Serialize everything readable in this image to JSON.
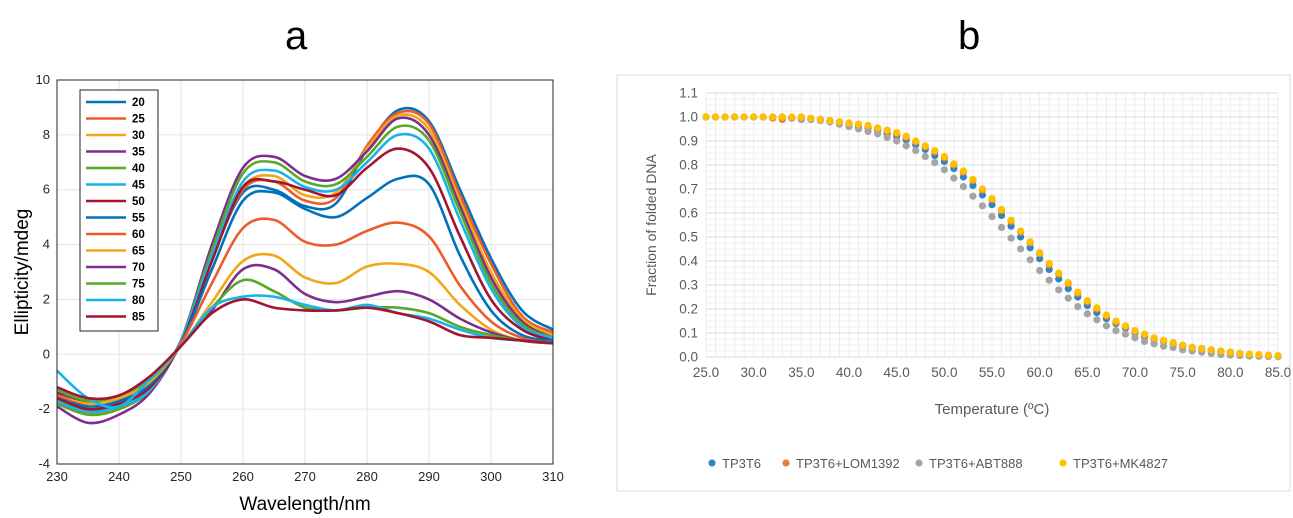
{
  "panel_a_letter": "a",
  "panel_b_letter": "b",
  "chart_data": [
    {
      "type": "line",
      "panel": "a",
      "xlabel": "Wavelength/nm",
      "ylabel": "Ellipticity/mdeg",
      "xlim": [
        230,
        310
      ],
      "ylim": [
        -4,
        10
      ],
      "xticks": [
        230,
        240,
        250,
        260,
        270,
        280,
        290,
        300,
        310
      ],
      "yticks": [
        -4,
        -2,
        0,
        2,
        4,
        6,
        8,
        10
      ],
      "grid": true,
      "legend_position": "top-left",
      "x": [
        230,
        235,
        240,
        245,
        250,
        255,
        260,
        265,
        270,
        275,
        280,
        285,
        290,
        295,
        300,
        305,
        310
      ],
      "series": [
        {
          "name": "20",
          "color": "#0072BD",
          "values": [
            -1.5,
            -2.0,
            -1.8,
            -1.2,
            0.5,
            3.5,
            5.9,
            6.0,
            5.4,
            5.5,
            7.5,
            8.9,
            8.5,
            6.0,
            3.5,
            1.6,
            0.9
          ]
        },
        {
          "name": "25",
          "color": "#F05A28",
          "values": [
            -1.6,
            -2.1,
            -1.9,
            -1.3,
            0.5,
            3.5,
            6.0,
            6.3,
            5.6,
            5.7,
            7.6,
            8.8,
            8.4,
            5.8,
            3.3,
            1.4,
            0.8
          ]
        },
        {
          "name": "30",
          "color": "#F0A818",
          "values": [
            -1.7,
            -2.2,
            -2.0,
            -1.3,
            0.5,
            3.6,
            6.1,
            6.5,
            5.8,
            5.9,
            7.5,
            8.7,
            8.2,
            5.6,
            3.0,
            1.3,
            0.7
          ]
        },
        {
          "name": "35",
          "color": "#7E2F8E",
          "values": [
            -1.9,
            -2.5,
            -2.2,
            -1.4,
            0.5,
            4.0,
            6.8,
            7.2,
            6.5,
            6.4,
            7.4,
            8.6,
            8.0,
            5.4,
            2.8,
            1.2,
            0.6
          ]
        },
        {
          "name": "40",
          "color": "#5AA828",
          "values": [
            -1.8,
            -2.2,
            -2.0,
            -1.3,
            0.5,
            3.8,
            6.6,
            7.0,
            6.3,
            6.2,
            7.2,
            8.3,
            7.8,
            5.2,
            2.6,
            1.1,
            0.6
          ]
        },
        {
          "name": "45",
          "color": "#18B4E8",
          "values": [
            -1.7,
            -2.1,
            -1.9,
            -1.3,
            0.5,
            3.6,
            6.3,
            6.7,
            6.1,
            6.0,
            7.0,
            8.0,
            7.5,
            4.9,
            2.4,
            1.0,
            0.6
          ]
        },
        {
          "name": "50",
          "color": "#A2142F",
          "values": [
            -1.6,
            -2.0,
            -1.8,
            -1.2,
            0.4,
            3.4,
            6.1,
            6.3,
            6.0,
            5.8,
            6.8,
            7.5,
            6.8,
            4.3,
            2.0,
            0.9,
            0.5
          ]
        },
        {
          "name": "55",
          "color": "#0072BD",
          "values": [
            -1.5,
            -1.9,
            -1.7,
            -1.1,
            0.4,
            3.1,
            5.6,
            5.9,
            5.3,
            5.0,
            5.7,
            6.4,
            6.2,
            3.6,
            1.6,
            0.7,
            0.5
          ]
        },
        {
          "name": "60",
          "color": "#F05A28",
          "values": [
            -1.5,
            -1.8,
            -1.6,
            -1.0,
            0.4,
            2.6,
            4.6,
            4.9,
            4.1,
            4.0,
            4.5,
            4.8,
            4.3,
            2.5,
            1.2,
            0.6,
            0.4
          ]
        },
        {
          "name": "65",
          "color": "#F0A818",
          "values": [
            -1.4,
            -1.8,
            -1.6,
            -1.0,
            0.3,
            1.9,
            3.4,
            3.6,
            2.8,
            2.6,
            3.2,
            3.3,
            3.0,
            1.8,
            0.9,
            0.5,
            0.4
          ]
        },
        {
          "name": "70",
          "color": "#7E2F8E",
          "values": [
            -1.4,
            -1.7,
            -1.5,
            -0.9,
            0.3,
            1.6,
            3.1,
            3.1,
            2.2,
            1.9,
            2.1,
            2.3,
            2.0,
            1.3,
            0.8,
            0.5,
            0.4
          ]
        },
        {
          "name": "75",
          "color": "#5AA828",
          "values": [
            -1.3,
            -1.7,
            -1.5,
            -0.9,
            0.3,
            1.7,
            2.7,
            2.3,
            1.7,
            1.6,
            1.7,
            1.7,
            1.5,
            1.0,
            0.7,
            0.5,
            0.4
          ]
        },
        {
          "name": "80",
          "color": "#18B4E8",
          "values": [
            -0.6,
            -1.6,
            -1.9,
            -0.9,
            0.3,
            1.7,
            2.1,
            2.1,
            1.8,
            1.6,
            1.8,
            1.5,
            1.3,
            0.9,
            0.6,
            0.5,
            0.4
          ]
        },
        {
          "name": "85",
          "color": "#A2142F",
          "values": [
            -1.2,
            -1.6,
            -1.5,
            -0.8,
            0.3,
            1.5,
            2.0,
            1.7,
            1.6,
            1.6,
            1.7,
            1.5,
            1.2,
            0.7,
            0.6,
            0.5,
            0.4
          ]
        }
      ]
    },
    {
      "type": "scatter",
      "panel": "b",
      "xlabel": "Temperature (ºC)",
      "ylabel": "Fraction of folded DNA",
      "xlim": [
        25,
        85
      ],
      "ylim": [
        0,
        1.1
      ],
      "xticks": [
        "25.0",
        "30.0",
        "35.0",
        "40.0",
        "45.0",
        "50.0",
        "55.0",
        "60.0",
        "65.0",
        "70.0",
        "75.0",
        "80.0",
        "85.0"
      ],
      "yticks": [
        "0.0",
        "0.1",
        "0.2",
        "0.3",
        "0.4",
        "0.5",
        "0.6",
        "0.7",
        "0.8",
        "0.9",
        "1.0",
        "1.1"
      ],
      "grid": true,
      "legend_position": "bottom",
      "x_start": 25,
      "x_step": 1,
      "series": [
        {
          "name": "TP3T6",
          "color": "#2E86C1",
          "values": [
            1.0,
            1.0,
            1.0,
            1.0,
            1.0,
            1.0,
            1.0,
            1.0,
            1.0,
            0.995,
            0.99,
            0.99,
            0.99,
            0.98,
            0.975,
            0.97,
            0.96,
            0.955,
            0.945,
            0.93,
            0.92,
            0.905,
            0.885,
            0.865,
            0.84,
            0.815,
            0.785,
            0.75,
            0.715,
            0.675,
            0.635,
            0.59,
            0.545,
            0.5,
            0.455,
            0.41,
            0.365,
            0.325,
            0.285,
            0.25,
            0.215,
            0.185,
            0.16,
            0.14,
            0.12,
            0.1,
            0.085,
            0.075,
            0.065,
            0.055,
            0.045,
            0.04,
            0.035,
            0.03,
            0.025,
            0.02,
            0.015,
            0.01,
            0.008,
            0.006,
            0.005
          ]
        },
        {
          "name": "TP3T6+LOM1392",
          "color": "#ED7D31",
          "values": [
            1.0,
            1.0,
            1.0,
            1.0,
            1.0,
            1.0,
            1.0,
            0.995,
            0.99,
            0.995,
            1.0,
            0.99,
            0.99,
            0.985,
            0.98,
            0.975,
            0.97,
            0.96,
            0.95,
            0.94,
            0.93,
            0.915,
            0.895,
            0.875,
            0.855,
            0.83,
            0.8,
            0.77,
            0.735,
            0.695,
            0.655,
            0.61,
            0.565,
            0.52,
            0.475,
            0.43,
            0.385,
            0.345,
            0.305,
            0.265,
            0.23,
            0.2,
            0.17,
            0.145,
            0.125,
            0.105,
            0.09,
            0.075,
            0.065,
            0.055,
            0.045,
            0.035,
            0.03,
            0.025,
            0.02,
            0.015,
            0.01,
            0.008,
            0.006,
            0.005,
            0.004
          ]
        },
        {
          "name": "TP3T6+ABT888",
          "color": "#A5A5A5",
          "values": [
            1.0,
            1.0,
            1.0,
            1.0,
            1.0,
            1.0,
            1.0,
            1.0,
            1.0,
            0.995,
            0.99,
            0.99,
            0.985,
            0.98,
            0.97,
            0.96,
            0.95,
            0.94,
            0.93,
            0.915,
            0.9,
            0.88,
            0.86,
            0.835,
            0.81,
            0.78,
            0.745,
            0.71,
            0.67,
            0.63,
            0.585,
            0.54,
            0.495,
            0.45,
            0.405,
            0.36,
            0.32,
            0.28,
            0.245,
            0.21,
            0.18,
            0.155,
            0.13,
            0.11,
            0.095,
            0.08,
            0.065,
            0.055,
            0.045,
            0.04,
            0.03,
            0.025,
            0.02,
            0.015,
            0.01,
            0.008,
            0.006,
            0.004,
            0.003,
            0.002,
            0.001
          ]
        },
        {
          "name": "TP3T6+MK4827",
          "color": "#FFC000",
          "values": [
            1.0,
            1.0,
            1.0,
            1.0,
            1.0,
            1.0,
            1.0,
            1.0,
            1.0,
            1.0,
            1.0,
            0.995,
            0.99,
            0.985,
            0.98,
            0.975,
            0.97,
            0.965,
            0.955,
            0.945,
            0.935,
            0.92,
            0.9,
            0.88,
            0.86,
            0.835,
            0.805,
            0.775,
            0.74,
            0.7,
            0.66,
            0.615,
            0.57,
            0.525,
            0.48,
            0.435,
            0.39,
            0.35,
            0.31,
            0.27,
            0.235,
            0.205,
            0.175,
            0.15,
            0.13,
            0.11,
            0.095,
            0.08,
            0.07,
            0.06,
            0.05,
            0.04,
            0.035,
            0.03,
            0.025,
            0.02,
            0.015,
            0.012,
            0.01,
            0.008,
            0.006
          ]
        }
      ]
    }
  ]
}
